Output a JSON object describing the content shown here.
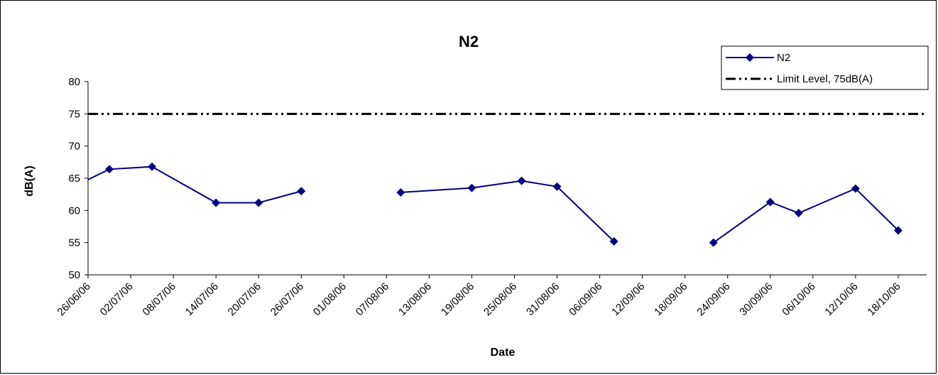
{
  "chart_data": {
    "type": "line",
    "title": "N2",
    "xlabel": "Date",
    "ylabel": "dB(A)",
    "ylim": [
      50,
      80
    ],
    "yticks": [
      50,
      55,
      60,
      65,
      70,
      75,
      80
    ],
    "xlim": [
      "26/06/06",
      "22/10/06"
    ],
    "xtick_labels": [
      "26/06/06",
      "02/07/06",
      "08/07/06",
      "14/07/06",
      "20/07/06",
      "26/07/06",
      "01/08/06",
      "07/08/06",
      "13/08/06",
      "19/08/06",
      "25/08/06",
      "31/08/06",
      "06/09/06",
      "12/09/06",
      "18/09/06",
      "24/09/06",
      "30/09/06",
      "06/10/06",
      "12/10/06",
      "18/10/06"
    ],
    "grid": false,
    "legend_position": "top-right",
    "series": [
      {
        "name": "N2",
        "color": "#000080",
        "marker": "diamond",
        "segments": [
          [
            {
              "x": "26/06/06",
              "y": 64.8
            },
            {
              "x": "29/06/06",
              "y": 66.4
            },
            {
              "x": "05/07/06",
              "y": 66.8
            },
            {
              "x": "14/07/06",
              "y": 61.2
            },
            {
              "x": "20/07/06",
              "y": 61.2
            },
            {
              "x": "26/07/06",
              "y": 63.0
            }
          ],
          [
            {
              "x": "09/08/06",
              "y": 62.8
            },
            {
              "x": "19/08/06",
              "y": 63.5
            },
            {
              "x": "26/08/06",
              "y": 64.6
            },
            {
              "x": "31/08/06",
              "y": 63.7
            },
            {
              "x": "08/09/06",
              "y": 55.2
            }
          ],
          [
            {
              "x": "22/09/06",
              "y": 55.0
            },
            {
              "x": "30/09/06",
              "y": 61.3
            },
            {
              "x": "04/10/06",
              "y": 59.6
            },
            {
              "x": "12/10/06",
              "y": 63.4
            },
            {
              "x": "18/10/06",
              "y": 56.9
            }
          ]
        ]
      },
      {
        "name": "Limit Level, 75dB(A)",
        "color": "#000000",
        "style": "dash-dot-dot",
        "constant": 75
      }
    ]
  }
}
